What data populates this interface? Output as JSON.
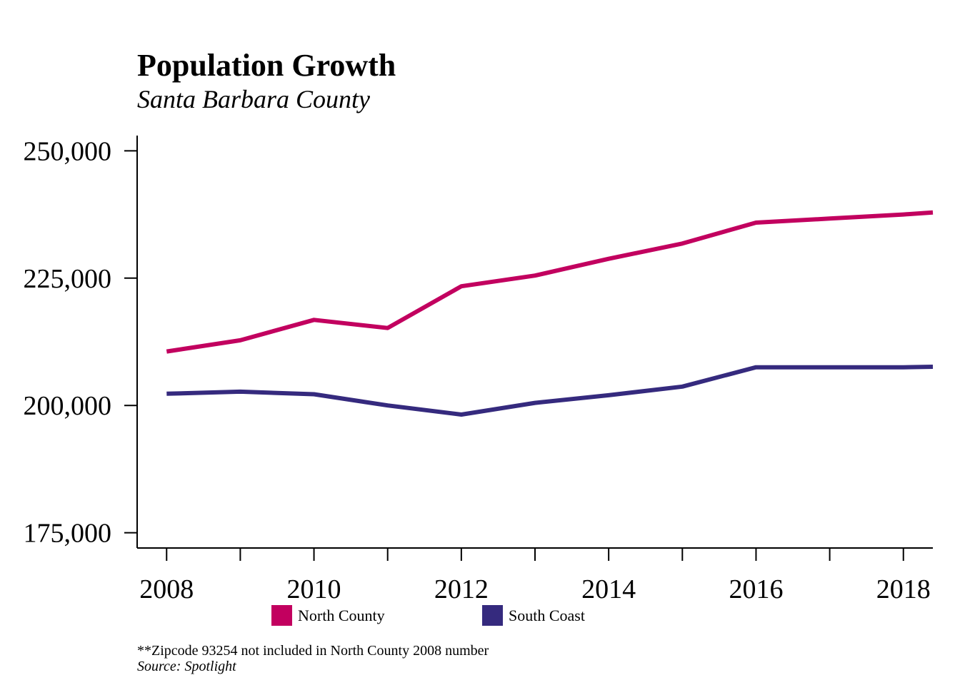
{
  "chart_data": {
    "type": "line",
    "title": "Population Growth",
    "subtitle": "Santa Barbara County",
    "xlabel": "",
    "ylabel": "",
    "x": [
      2008,
      2009,
      2010,
      2011,
      2012,
      2013,
      2014,
      2015,
      2016,
      2017,
      2018,
      2018.4
    ],
    "xlim": [
      2007.6,
      2018.4
    ],
    "ylim": [
      172000,
      253000
    ],
    "x_ticks": [
      2008,
      2009,
      2010,
      2011,
      2012,
      2013,
      2014,
      2015,
      2016,
      2017,
      2018
    ],
    "x_tick_labels": [
      "2008",
      "2010",
      "2012",
      "2014",
      "2016",
      "2018"
    ],
    "y_ticks": [
      175000,
      200000,
      225000,
      250000
    ],
    "y_tick_labels": [
      "175,000",
      "200,000",
      "225,000",
      "250,000"
    ],
    "grid": false,
    "legend_position": "bottom",
    "series": [
      {
        "name": "North County",
        "color": "#C2005F",
        "values": [
          210600,
          212800,
          216800,
          215200,
          223400,
          225500,
          228800,
          231800,
          235900,
          236700,
          237500,
          237900
        ]
      },
      {
        "name": "South Coast",
        "color": "#352A7E",
        "values": [
          202300,
          202700,
          202200,
          200000,
          198200,
          200500,
          202000,
          203700,
          207500,
          207500,
          207500,
          207600
        ]
      }
    ]
  },
  "footer": {
    "note": "**Zipcode 93254 not included in North County 2008 number",
    "source": "Source: Spotlight"
  }
}
